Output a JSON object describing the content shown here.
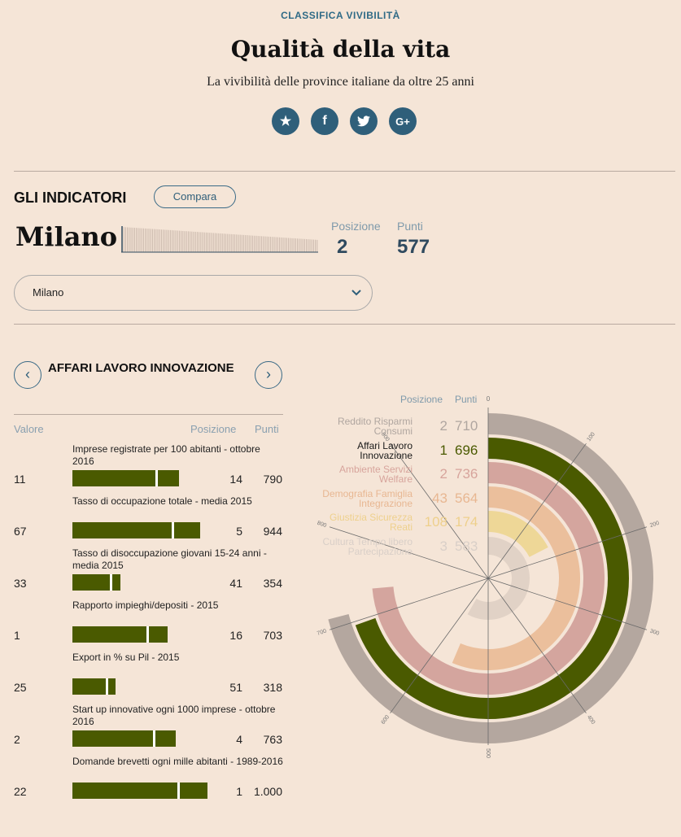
{
  "header": {
    "kicker": "CLASSIFICA VIVIBILITÀ",
    "title": "Qualità della vita",
    "subtitle": "La vivibilità delle province italiane da oltre 25 anni",
    "social": [
      {
        "icon": "star-icon",
        "glyph": "★"
      },
      {
        "icon": "facebook-icon",
        "glyph": "f"
      },
      {
        "icon": "twitter-icon",
        "glyph": "🐦"
      },
      {
        "icon": "google-plus-icon",
        "glyph": "G+"
      }
    ]
  },
  "indicators": {
    "heading": "GLI INDICATORI",
    "compare_label": "Compara",
    "city": "Milano",
    "position_label": "Posizione",
    "position_value": "2",
    "points_label": "Punti",
    "points_value": "577",
    "select_value": "Milano"
  },
  "category": {
    "prev_glyph": "‹",
    "next_glyph": "›",
    "name": "AFFARI LAVORO INNOVAZIONE",
    "col_value": "Valore",
    "col_position": "Posizione",
    "col_points": "Punti",
    "items": [
      {
        "label": "Imprese registrate per 100 abitanti - ottobre 2016",
        "value": "11",
        "position": "14",
        "points": "790",
        "score": 790
      },
      {
        "label": "Tasso di occupazione totale - media 2015",
        "value": "67",
        "position": "5",
        "points": "944",
        "score": 944
      },
      {
        "label": "Tasso di disoccupazione giovani 15-24 anni - media 2015",
        "value": "33",
        "position": "41",
        "points": "354",
        "score": 354
      },
      {
        "label": "Rapporto impieghi/depositi - 2015",
        "value": "1",
        "position": "16",
        "points": "703",
        "score": 703
      },
      {
        "label": "Export in % su Pil - 2015",
        "value": "25",
        "position": "51",
        "points": "318",
        "score": 318
      },
      {
        "label": "Start up innovative ogni 1000 imprese - ottobre 2016",
        "value": "2",
        "position": "4",
        "points": "763",
        "score": 763
      },
      {
        "label": "Domande brevetti ogni mille abitanti - 1989-2016",
        "value": "22",
        "position": "1",
        "points": "1.000",
        "score": 1000
      }
    ]
  },
  "radial": {
    "col_position": "Posizione",
    "col_points": "Punti",
    "zero_label": "0",
    "ticks": [
      "100",
      "200",
      "300",
      "400",
      "500",
      "600",
      "700",
      "800",
      "900"
    ],
    "categories": [
      {
        "label1": "Reddito Risparmi",
        "label2": "Consumi",
        "position": "2",
        "points": "710",
        "score": 710,
        "color": "#b4a79f",
        "text_color": "#b0a6a0"
      },
      {
        "label1": "Affari Lavoro",
        "label2": "Innovazione",
        "position": "1",
        "points": "696",
        "score": 696,
        "color": "#4a5a00",
        "text_color": "#4a5a00"
      },
      {
        "label1": "Ambiente Servizi",
        "label2": "Welfare",
        "position": "2",
        "points": "736",
        "score": 736,
        "color": "#d4a59e",
        "text_color": "#d7a49c"
      },
      {
        "label1": "Demografia Famiglia",
        "label2": "Integrazione",
        "position": "43",
        "points": "564",
        "score": 564,
        "color": "#ebbf9c",
        "text_color": "#e8b792"
      },
      {
        "label1": "Giustizia Sicurezza",
        "label2": "Reati",
        "position": "108",
        "points": "174",
        "score": 174,
        "color": "#eed797",
        "text_color": "#eed08c"
      },
      {
        "label1": "Cultura Tempo libero",
        "label2": "Partecipazione",
        "position": "3",
        "points": "583",
        "score": 583,
        "color": "#e1d2c6",
        "text_color": "#d9cfc8"
      }
    ]
  }
}
